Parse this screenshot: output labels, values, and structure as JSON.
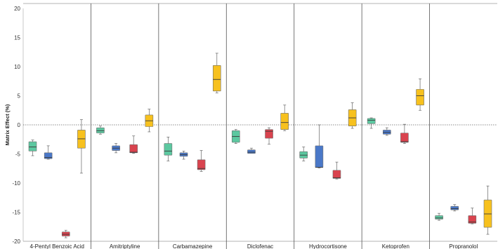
{
  "chart_data": {
    "type": "box",
    "title": "",
    "xlabel": "",
    "ylabel": "Matrix Effect (%)",
    "ylim": [
      -20,
      20
    ],
    "yticks": [
      -20,
      -15,
      -10,
      -5,
      0,
      5,
      10,
      15,
      20
    ],
    "reference_line": 0,
    "categories": [
      "4-Pentyl Benzoic Acid",
      "Amitriptyline",
      "Carbamazepine",
      "Diclofenac",
      "Hydrocortisone",
      "Ketoprofen",
      "Propranolol"
    ],
    "series": [
      {
        "color": "#5cc8a0",
        "boxes": [
          {
            "min": -5.3,
            "q1": -4.5,
            "median": -3.8,
            "q3": -2.9,
            "max": -2.6
          },
          {
            "min": -1.6,
            "q1": -1.4,
            "median": -1.0,
            "q3": -0.5,
            "max": -0.2
          },
          {
            "min": -6.2,
            "q1": -5.2,
            "median": -4.5,
            "q3": -3.2,
            "max": -2.1
          },
          {
            "min": -3.2,
            "q1": -3.0,
            "median": -2.0,
            "q3": -1.0,
            "max": -0.8
          },
          {
            "min": -6.2,
            "q1": -5.7,
            "median": -5.2,
            "q3": -4.6,
            "max": -3.8
          },
          {
            "min": -0.6,
            "q1": 0.2,
            "median": 0.8,
            "q3": 1.1,
            "max": 1.2
          },
          {
            "min": -16.4,
            "q1": -16.2,
            "median": -16.0,
            "q3": -15.6,
            "max": -15.2
          }
        ]
      },
      {
        "color": "#4a78c8",
        "boxes": [
          {
            "min": -5.9,
            "q1": -5.8,
            "median": -5.6,
            "q3": -4.8,
            "max": -3.6
          },
          {
            "min": -4.8,
            "q1": -4.4,
            "median": -4.0,
            "q3": -3.6,
            "max": -3.2
          },
          {
            "min": -5.9,
            "q1": -5.4,
            "median": -5.1,
            "q3": -4.8,
            "max": -4.5
          },
          {
            "min": -4.9,
            "q1": -4.9,
            "median": -4.7,
            "q3": -4.3,
            "max": -4.0
          },
          {
            "min": -7.4,
            "q1": -7.3,
            "median": -7.3,
            "q3": -3.6,
            "max": 0.0
          },
          {
            "min": -1.8,
            "q1": -1.6,
            "median": -1.3,
            "q3": -0.9,
            "max": -0.5
          },
          {
            "min": -14.8,
            "q1": -14.6,
            "median": -14.4,
            "q3": -14.0,
            "max": -13.7
          }
        ]
      },
      {
        "color": "#d9434e",
        "boxes": [
          {
            "min": -19.4,
            "q1": -19.1,
            "median": -18.8,
            "q3": -18.4,
            "max": -18.1
          },
          {
            "min": -4.9,
            "q1": -4.8,
            "median": -4.7,
            "q3": -3.4,
            "max": -1.9
          },
          {
            "min": -8.0,
            "q1": -7.7,
            "median": -7.5,
            "q3": -6.0,
            "max": -4.4
          },
          {
            "min": -3.3,
            "q1": -2.3,
            "median": -1.1,
            "q3": -0.8,
            "max": -0.5
          },
          {
            "min": -9.3,
            "q1": -9.2,
            "median": -9.1,
            "q3": -7.8,
            "max": -6.4
          },
          {
            "min": -3.2,
            "q1": -3.0,
            "median": -2.9,
            "q3": -1.4,
            "max": 0.1
          },
          {
            "min": -17.0,
            "q1": -16.9,
            "median": -16.7,
            "q3": -15.6,
            "max": -14.3
          }
        ]
      },
      {
        "color": "#f7c11e",
        "boxes": [
          {
            "min": -8.3,
            "q1": -4.0,
            "median": -2.4,
            "q3": -0.9,
            "max": 0.9
          },
          {
            "min": -1.2,
            "q1": -0.3,
            "median": 0.7,
            "q3": 1.7,
            "max": 2.7
          },
          {
            "min": 5.5,
            "q1": 5.8,
            "median": 7.8,
            "q3": 10.2,
            "max": 12.3
          },
          {
            "min": -1.0,
            "q1": -0.8,
            "median": 0.4,
            "q3": 2.0,
            "max": 3.4
          },
          {
            "min": -0.6,
            "q1": -0.2,
            "median": 1.2,
            "q3": 2.6,
            "max": 3.8
          },
          {
            "min": 2.5,
            "q1": 3.4,
            "median": 5.0,
            "q3": 6.1,
            "max": 7.9
          },
          {
            "min": -18.8,
            "q1": -17.6,
            "median": -15.3,
            "q3": -12.9,
            "max": -10.5
          }
        ]
      }
    ]
  }
}
